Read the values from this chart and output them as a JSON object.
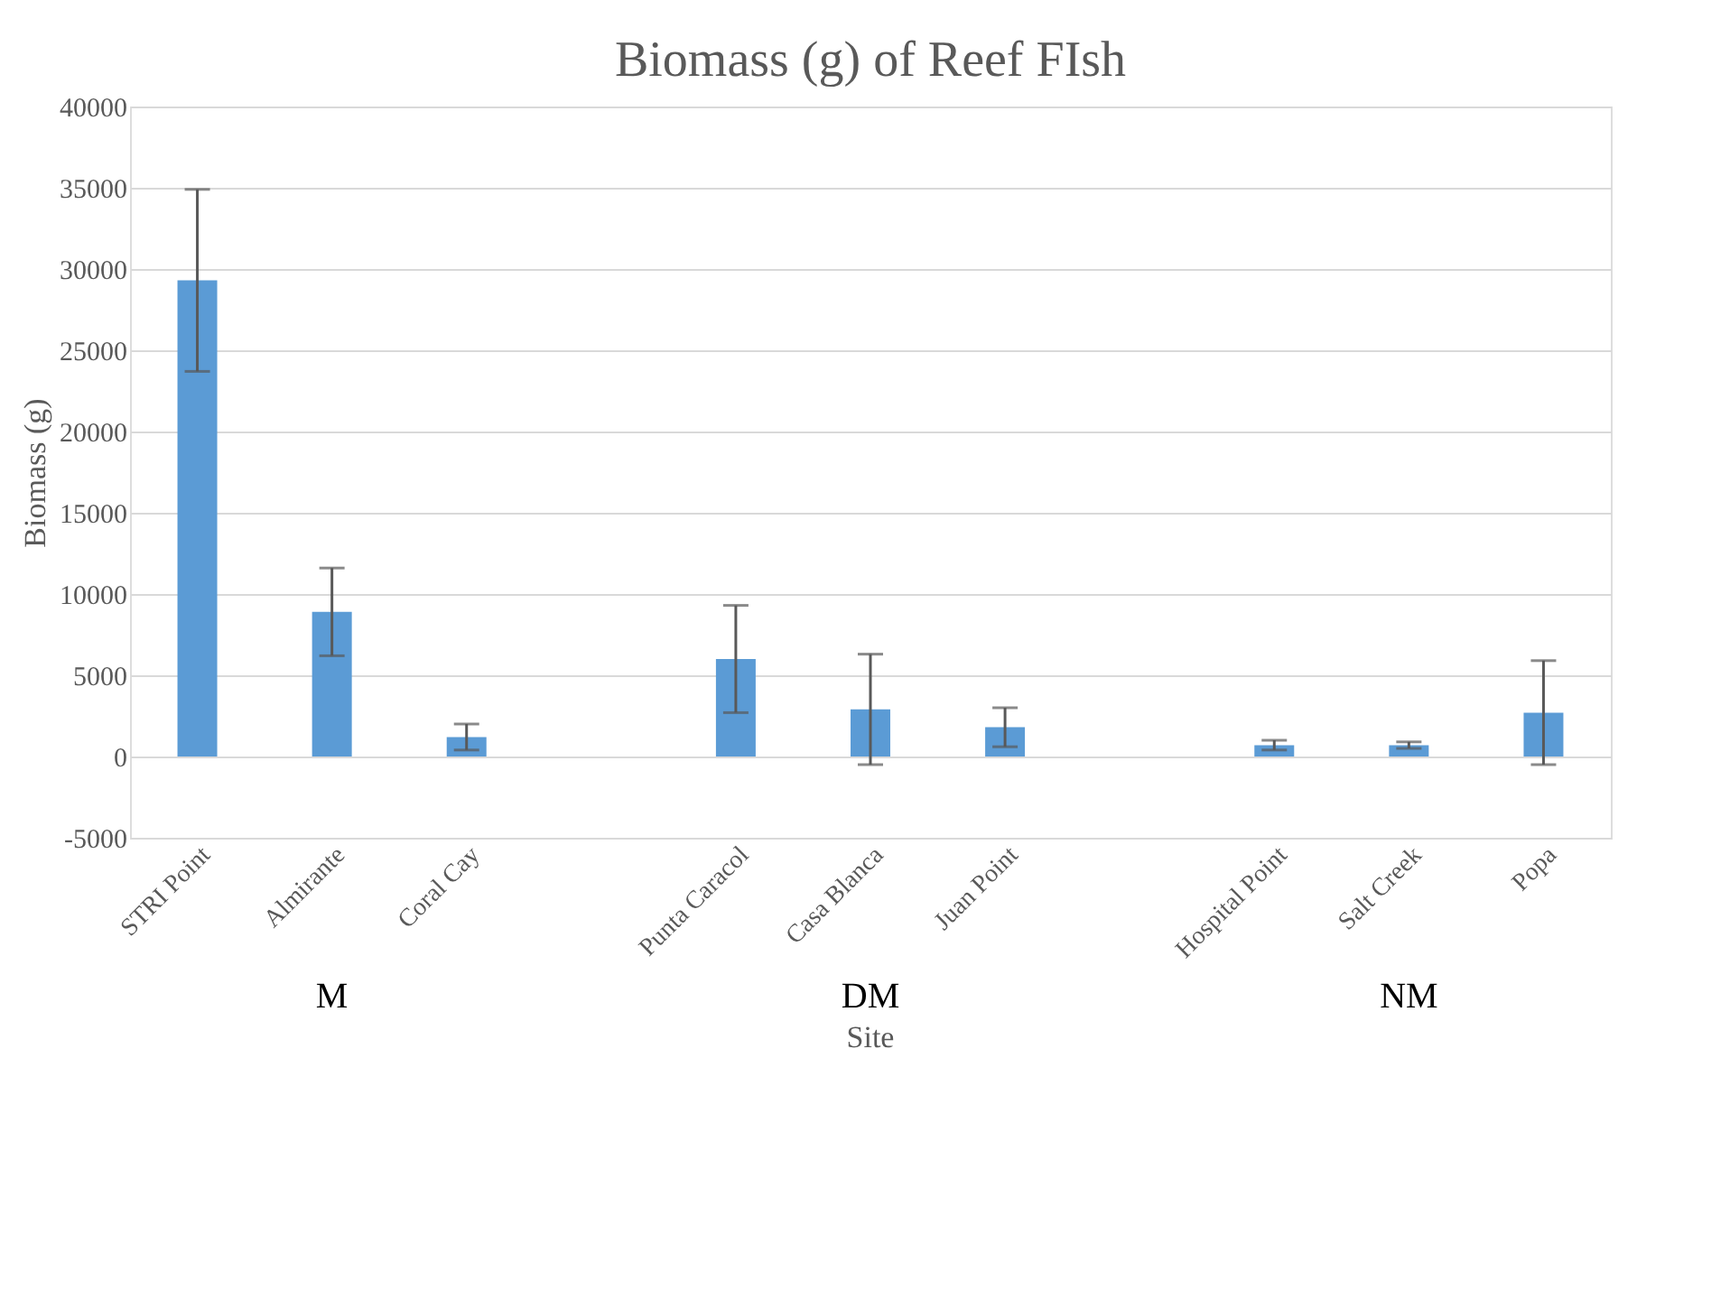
{
  "chart_data": {
    "type": "bar",
    "title": "Biomass (g) of Reef FIsh",
    "xlabel": "Site",
    "ylabel": "Biomass (g)",
    "categories": [
      "STRI Point",
      "Almirante",
      "Coral Cay",
      null,
      "Punta Caracol",
      "Casa Blanca",
      "Juan Point",
      null,
      "Hospital Point",
      "Salt Creek",
      "Popa"
    ],
    "values": [
      29300,
      8900,
      1200,
      null,
      6000,
      2900,
      1800,
      null,
      700,
      700,
      2700
    ],
    "errors": [
      [
        23700,
        34900
      ],
      [
        6200,
        11600
      ],
      [
        400,
        2000
      ],
      null,
      [
        2700,
        9300
      ],
      [
        -500,
        6300
      ],
      [
        600,
        3000
      ],
      null,
      [
        400,
        1000
      ],
      [
        500,
        900
      ],
      [
        -500,
        5900
      ]
    ],
    "color": "#5b9bd5",
    "ylim": [
      -5000,
      40000
    ],
    "yticks": [
      -5000,
      0,
      5000,
      10000,
      15000,
      20000,
      25000,
      30000,
      35000,
      40000
    ],
    "grid": "y",
    "annotations": [
      "M",
      "DM",
      "NM"
    ]
  }
}
